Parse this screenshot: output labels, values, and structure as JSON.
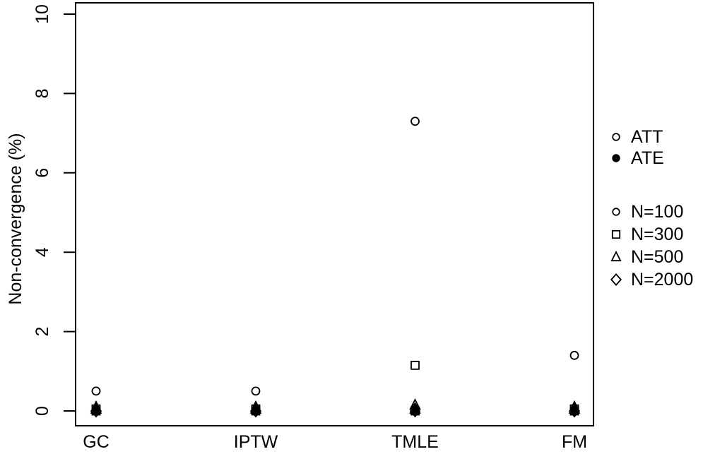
{
  "chart_data": {
    "type": "scatter",
    "title": "",
    "xlabel": "",
    "ylabel": "Non-convergence (%)",
    "categories": [
      "GC",
      "IPTW",
      "TMLE",
      "FM"
    ],
    "ylim": [
      0,
      10
    ],
    "yticks": [
      "0",
      "2",
      "4",
      "6",
      "8",
      "10"
    ],
    "grid": false,
    "frame": "full-box",
    "series": [
      {
        "name": "ATT N=100",
        "estimand": "ATT",
        "sample_size": "N=100",
        "marker": "circle",
        "fill": "open",
        "values": [
          0.5,
          0.5,
          7.3,
          1.4
        ]
      },
      {
        "name": "ATT N=300",
        "estimand": "ATT",
        "sample_size": "N=300",
        "marker": "square",
        "fill": "open",
        "values": [
          0.05,
          0.05,
          1.15,
          0.05
        ]
      },
      {
        "name": "ATT N=500",
        "estimand": "ATT",
        "sample_size": "N=500",
        "marker": "triangle",
        "fill": "open",
        "values": [
          0.1,
          0.1,
          0.15,
          0.1
        ]
      },
      {
        "name": "ATT N=2000",
        "estimand": "ATT",
        "sample_size": "N=2000",
        "marker": "diamond",
        "fill": "open",
        "values": [
          0,
          0,
          0.05,
          0
        ]
      },
      {
        "name": "ATE N=100",
        "estimand": "ATE",
        "sample_size": "N=100",
        "marker": "circle",
        "fill": "filled",
        "values": [
          0,
          0,
          0,
          0
        ]
      },
      {
        "name": "ATE N=300",
        "estimand": "ATE",
        "sample_size": "N=300",
        "marker": "square",
        "fill": "filled",
        "values": [
          0,
          0,
          0,
          0
        ]
      },
      {
        "name": "ATE N=500",
        "estimand": "ATE",
        "sample_size": "N=500",
        "marker": "triangle",
        "fill": "filled",
        "values": [
          0.05,
          0.05,
          0.05,
          0.05
        ]
      },
      {
        "name": "ATE N=2000",
        "estimand": "ATE",
        "sample_size": "N=2000",
        "marker": "diamond",
        "fill": "filled",
        "values": [
          0,
          0,
          0,
          0
        ]
      }
    ],
    "legend": {
      "position": "right",
      "groups": [
        {
          "name": "estimand-legend",
          "items": [
            {
              "marker": "circle",
              "fill": "open",
              "label": "ATT"
            },
            {
              "marker": "circle",
              "fill": "filled",
              "label": "ATE"
            }
          ]
        },
        {
          "name": "sample-size-legend",
          "items": [
            {
              "marker": "circle",
              "fill": "open",
              "label": "N=100"
            },
            {
              "marker": "square",
              "fill": "open",
              "label": "N=300"
            },
            {
              "marker": "triangle",
              "fill": "open",
              "label": "N=500"
            },
            {
              "marker": "diamond",
              "fill": "open",
              "label": "N=2000"
            }
          ]
        }
      ]
    },
    "colors": {
      "foreground": "#000000",
      "background": "#ffffff"
    }
  }
}
